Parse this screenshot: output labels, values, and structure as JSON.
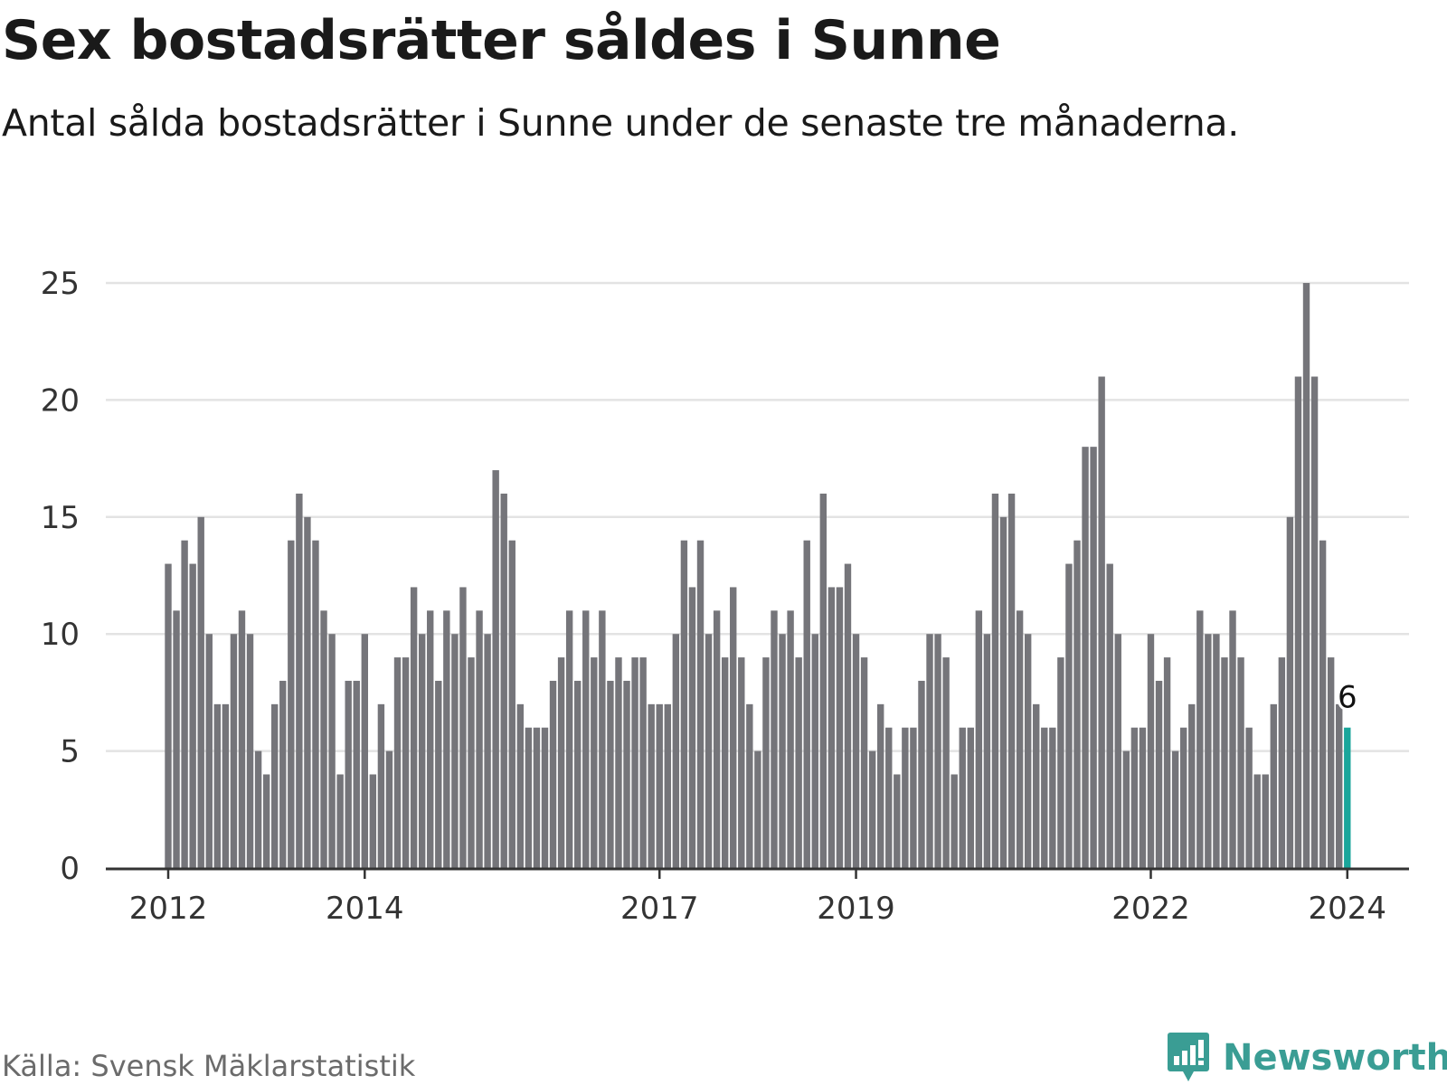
{
  "title": "Sex bostadsrätter såldes i Sunne",
  "subtitle": "Antal sålda bostadsrätter i Sunne under de senaste tre månaderna.",
  "source": "Källa: Svensk Mäklarstatistik",
  "brand": {
    "name": "Newsworthy",
    "icon": "newsworthy-logo-icon"
  },
  "colors": {
    "bar": "#75757a",
    "highlight": "#1aa69b",
    "grid": "#e3e3e3",
    "axis": "#333333",
    "brand": "#3a9d94"
  },
  "chart_data": {
    "type": "bar",
    "title": "Sex bostadsrätter såldes i Sunne",
    "xlabel": "",
    "ylabel": "",
    "ylim": [
      0,
      25
    ],
    "yticks": [
      0,
      5,
      10,
      15,
      20,
      25
    ],
    "grid": true,
    "start": "2012-01",
    "frequency": "monthly",
    "x_tick_labels": [
      {
        "label": "2012",
        "index": 0
      },
      {
        "label": "2014",
        "index": 24
      },
      {
        "label": "2017",
        "index": 60
      },
      {
        "label": "2019",
        "index": 84
      },
      {
        "label": "2022",
        "index": 120
      },
      {
        "label": "2024",
        "index": 144
      }
    ],
    "values": [
      13,
      11,
      14,
      13,
      15,
      10,
      7,
      7,
      10,
      11,
      10,
      5,
      4,
      7,
      8,
      14,
      16,
      15,
      14,
      11,
      10,
      4,
      8,
      8,
      10,
      4,
      7,
      5,
      9,
      9,
      12,
      10,
      11,
      8,
      11,
      10,
      12,
      9,
      11,
      10,
      17,
      16,
      14,
      7,
      6,
      6,
      6,
      8,
      9,
      11,
      8,
      11,
      9,
      11,
      8,
      9,
      8,
      9,
      9,
      7,
      7,
      7,
      10,
      14,
      12,
      14,
      10,
      11,
      9,
      12,
      9,
      7,
      5,
      9,
      11,
      10,
      11,
      9,
      14,
      10,
      16,
      12,
      12,
      13,
      10,
      9,
      5,
      7,
      6,
      4,
      6,
      6,
      8,
      10,
      10,
      9,
      4,
      6,
      6,
      11,
      10,
      16,
      15,
      16,
      11,
      10,
      7,
      6,
      6,
      9,
      13,
      14,
      18,
      18,
      21,
      13,
      10,
      5,
      6,
      6,
      10,
      8,
      9,
      5,
      6,
      7,
      11,
      10,
      10,
      9,
      11,
      9,
      6,
      4,
      4,
      7,
      9,
      15,
      21,
      25,
      21,
      14,
      9,
      7,
      6
    ],
    "highlight_index": 144,
    "highlight_label": "6"
  }
}
